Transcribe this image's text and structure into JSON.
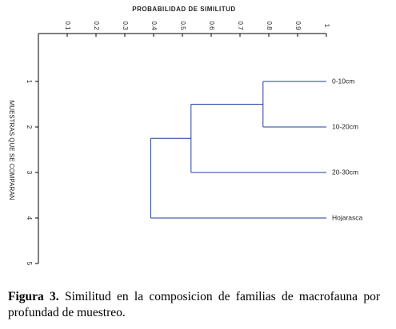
{
  "chart_data": {
    "type": "dendrogram",
    "title": "PROBABILIDAD DE SIMILITUD",
    "y_label": "MUESTRAS QUE SE COMPARAN",
    "xlim": [
      0,
      1
    ],
    "xticks": [
      {
        "value": 0.1,
        "label": "0.1"
      },
      {
        "value": 0.2,
        "label": "0.2"
      },
      {
        "value": 0.3,
        "label": "0.3"
      },
      {
        "value": 0.4,
        "label": "0.4"
      },
      {
        "value": 0.5,
        "label": "0.5"
      },
      {
        "value": 0.6,
        "label": "0.6"
      },
      {
        "value": 0.7,
        "label": "0.7"
      },
      {
        "value": 0.8,
        "label": "0.8"
      },
      {
        "value": 0.9,
        "label": "0.9"
      },
      1
    ],
    "ylim": [
      0,
      5
    ],
    "yticks": [
      1,
      2,
      3,
      4,
      5
    ],
    "leaves": {
      "labels": [
        "0-10cm",
        "10-20cm",
        "20-30cm",
        "Hojarasca"
      ],
      "positions": [
        1,
        2,
        3,
        4
      ]
    },
    "merges": [
      0.78,
      0.53,
      0.39
    ],
    "color": "#1f3d99"
  },
  "caption": {
    "label": "Figura 3.",
    "text": "Similitud en la composicion de familias de macrofauna por profundad de muestreo."
  }
}
